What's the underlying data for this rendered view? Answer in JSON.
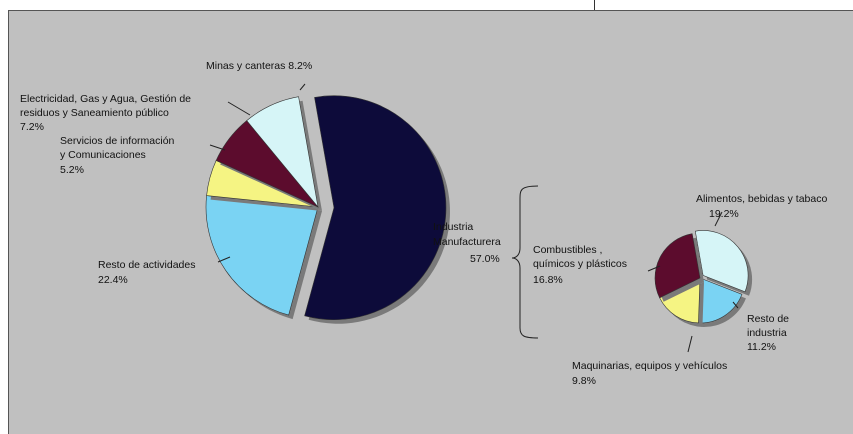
{
  "chart_data": [
    {
      "type": "pie",
      "slices": [
        {
          "label": "Industria Manufacturera",
          "value": 57.0,
          "value_text": "57.0%",
          "color": "#0d0b3a",
          "exploded": true
        },
        {
          "label": "Resto de actividades",
          "value": 22.4,
          "value_text": "22.4%",
          "color": "#7ad3f3"
        },
        {
          "label": "Servicios de información y Comunicaciones",
          "value": 5.2,
          "value_text": "5.2%",
          "color": "#f5f483"
        },
        {
          "label": "Electricidad, Gas y Agua, Gestión de residuos y Saneamiento público",
          "value": 7.2,
          "value_text": "7.2%",
          "color": "#5c0c2d"
        },
        {
          "label": "Minas y canteras",
          "value": 8.2,
          "value_text": "8.2%",
          "color": "#d6f5f7"
        }
      ]
    },
    {
      "type": "pie",
      "slices": [
        {
          "label": "Alimentos, bebidas y tabaco",
          "value": 19.2,
          "value_text": "19.2%",
          "color": "#d6f5f7"
        },
        {
          "label": "Resto de industria",
          "value": 11.2,
          "value_text": "11.2%",
          "color": "#7ad3f3"
        },
        {
          "label": "Maquinarias, equipos y vehículos",
          "value": 9.8,
          "value_text": "9.8%",
          "color": "#f5f483"
        },
        {
          "label": "Combustibles, químicos y plásticos",
          "value": 16.8,
          "value_text": "16.8%",
          "color": "#5c0c2d"
        }
      ]
    }
  ]
}
